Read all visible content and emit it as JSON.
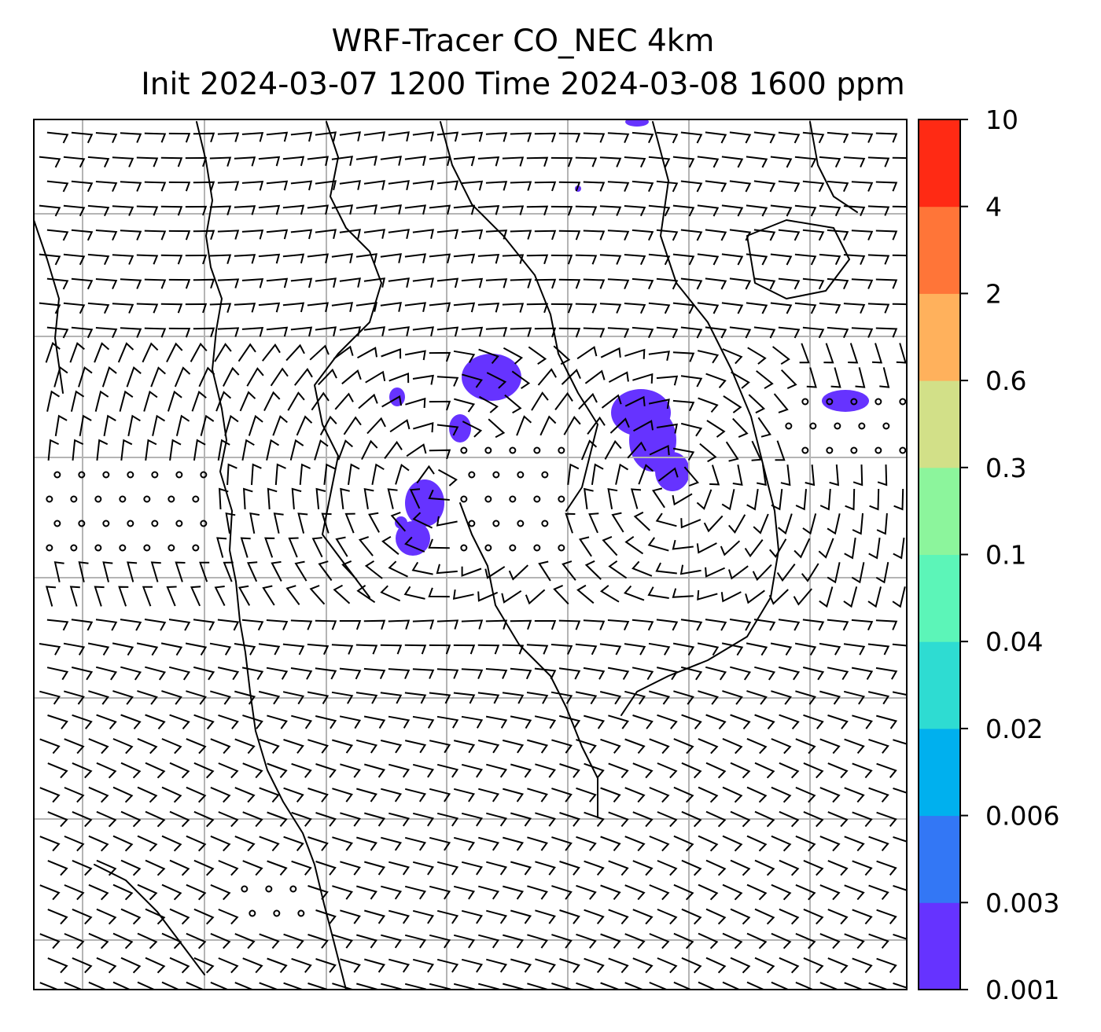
{
  "title": {
    "line1": "WRF-Tracer CO_NEC 4km",
    "line2": "Init 2024-03-07 1200 Time 2024-03-08 1600 ppm"
  },
  "colorbar": {
    "levels": [
      "0.001",
      "0.003",
      "0.006",
      "0.02",
      "0.04",
      "0.1",
      "0.3",
      "0.6",
      "2",
      "4",
      "10"
    ],
    "colors": [
      "#6633ff",
      "#3377f5",
      "#00b0ee",
      "#2edcd2",
      "#5cf5b8",
      "#8cf59c",
      "#d2e088",
      "#ffb15c",
      "#ff7538",
      "#ff2a14"
    ]
  },
  "map": {
    "frame_color": "#000000",
    "grid_color": "#b4b4b4",
    "wind_barb_color": "#000000",
    "coastline_color": "#000000",
    "tracer_color": "#6633ff"
  }
}
